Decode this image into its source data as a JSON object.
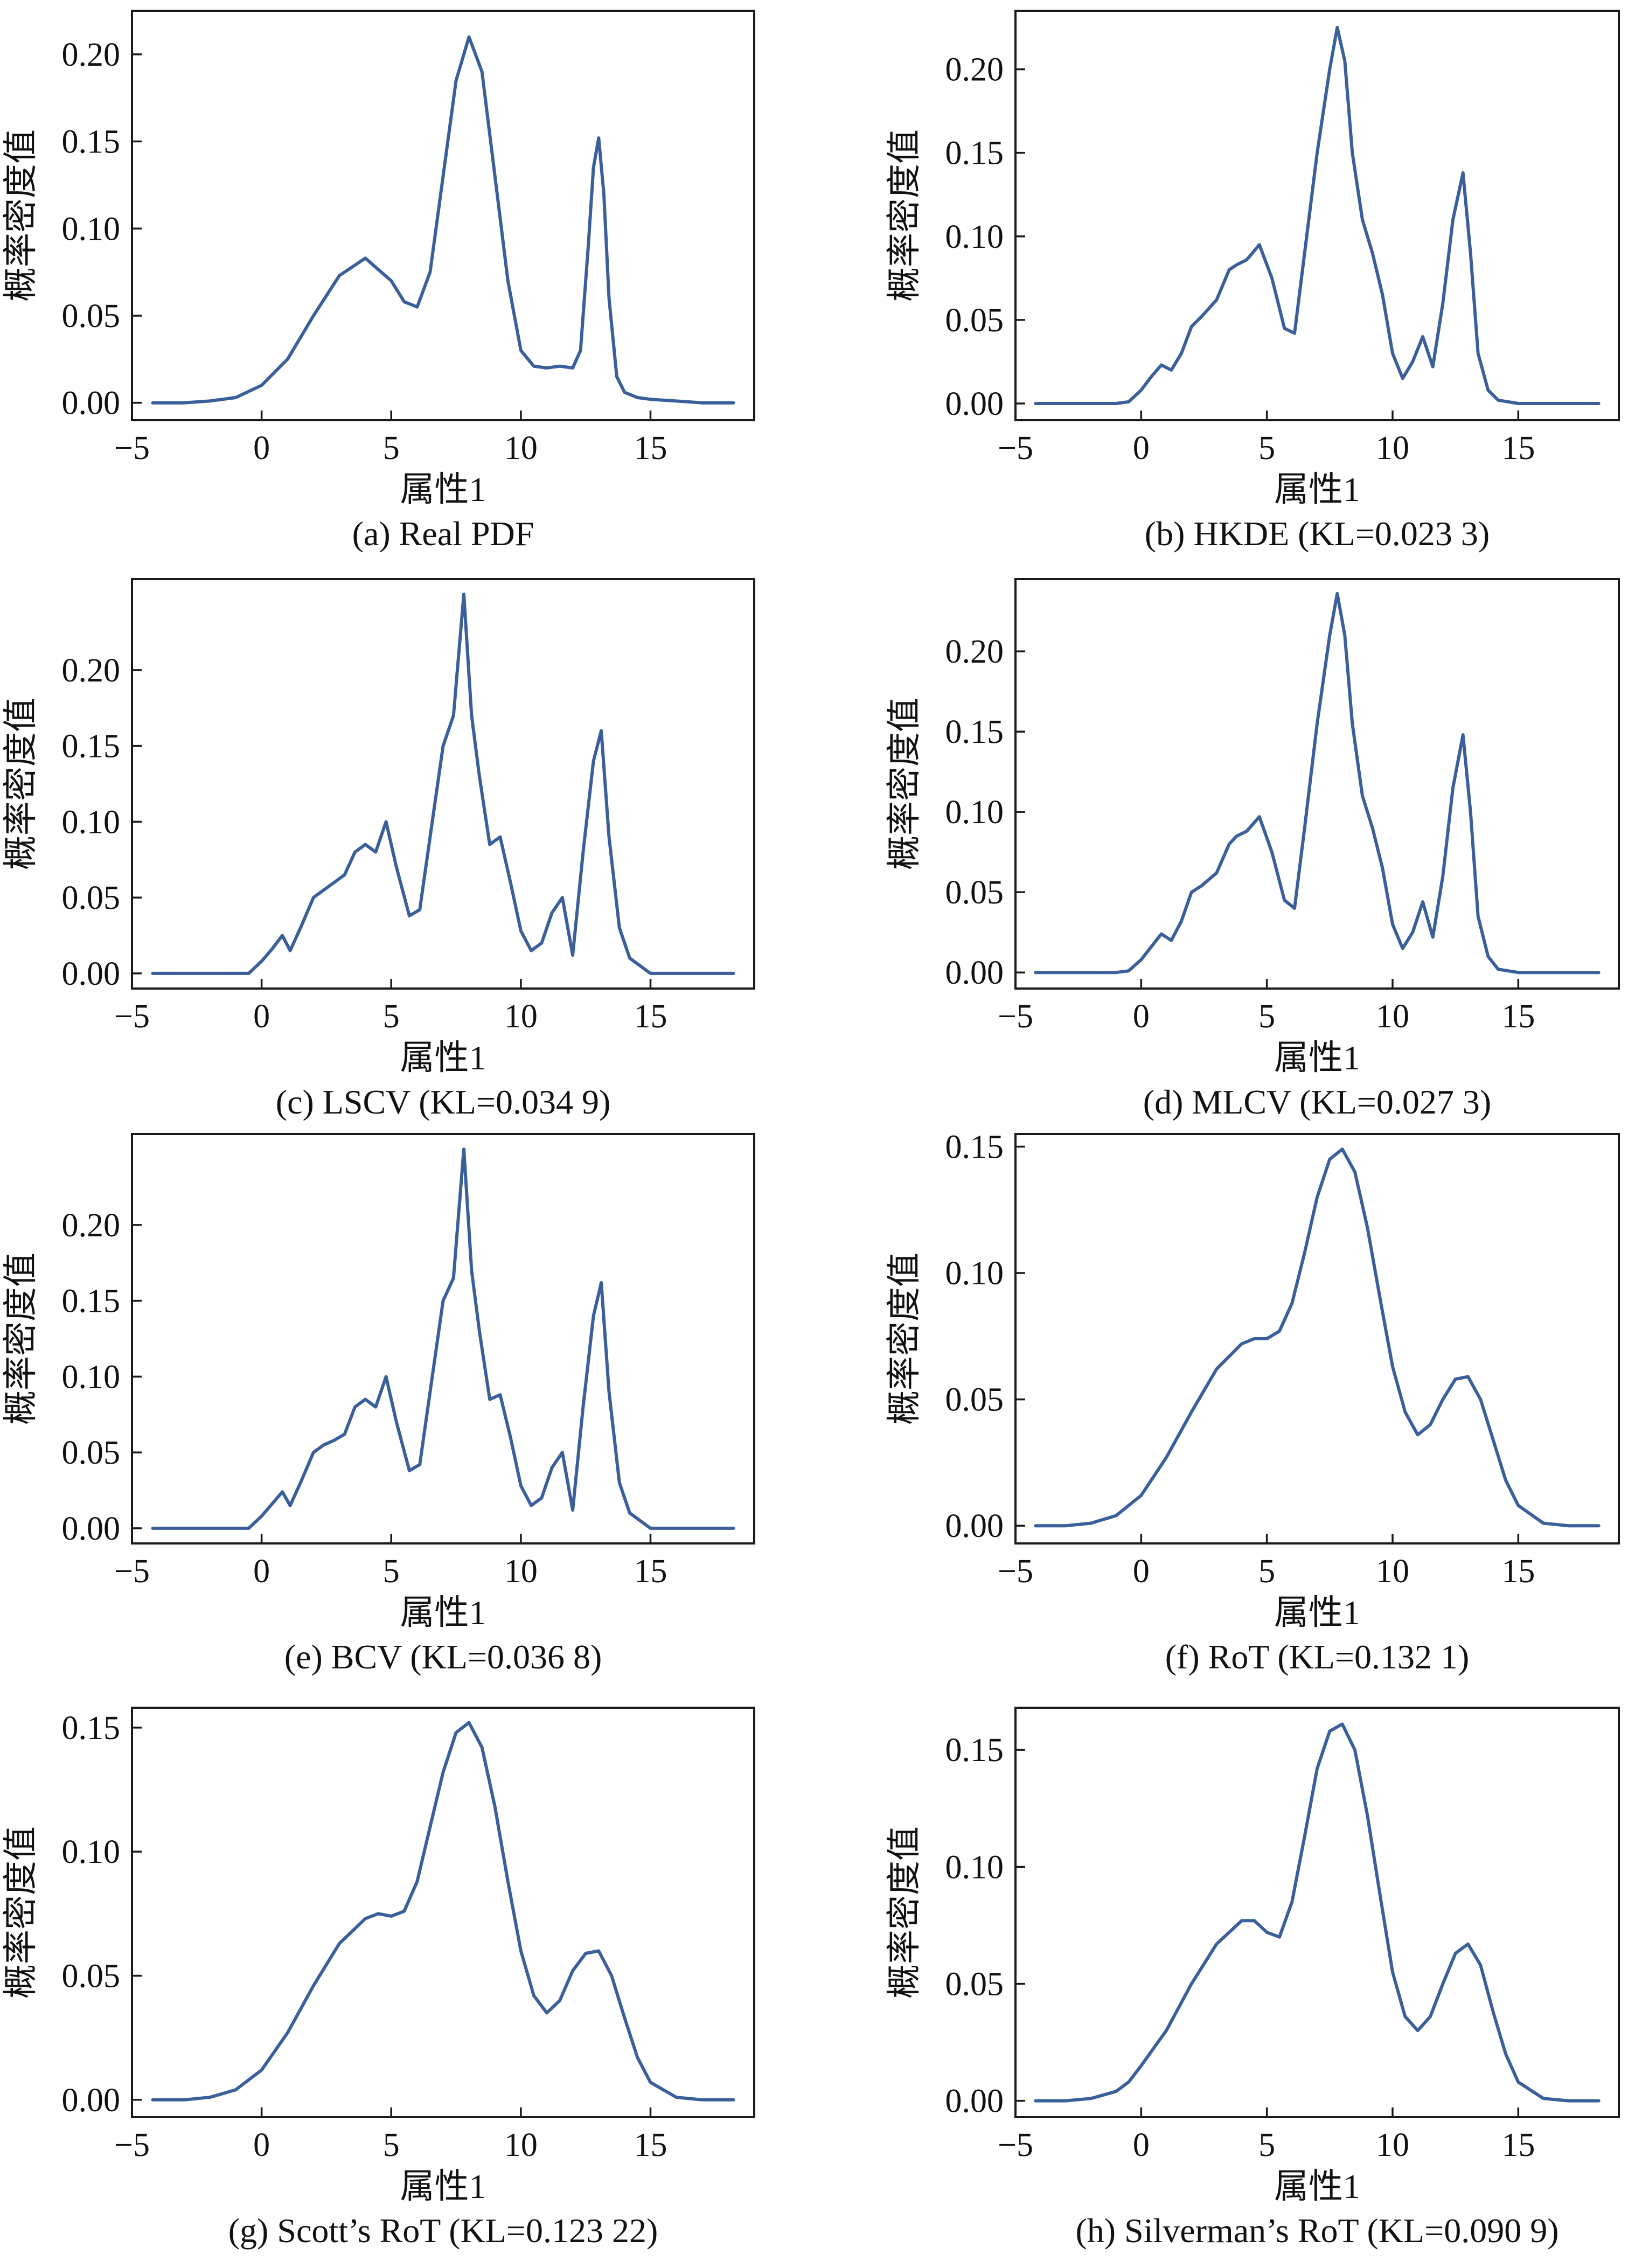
{
  "figure": {
    "curve_color": "#3a5f9b",
    "xlabel": "属性1",
    "ylabel": "概率密度值"
  },
  "chart_data": [
    {
      "type": "line",
      "caption": "(a) Real PDF",
      "xlabel": "属性1",
      "ylabel": "概率密度值",
      "xlim": [
        -5,
        19
      ],
      "ylim": [
        -0.01,
        0.225
      ],
      "xticks": [
        -5,
        0,
        5,
        10,
        15
      ],
      "xtick_labels": [
        "−5",
        "0",
        "5",
        "10",
        "15"
      ],
      "yticks": [
        0.0,
        0.05,
        0.1,
        0.15,
        0.2
      ],
      "ytick_labels": [
        "0.00",
        "0.05",
        "0.10",
        "0.15",
        "0.20"
      ],
      "series": [
        {
          "x": [
            -4.2,
            -3,
            -2,
            -1,
            0,
            1,
            2,
            3,
            4,
            5,
            5.5,
            6,
            6.5,
            7,
            7.5,
            8,
            8.5,
            9,
            9.5,
            10,
            10.5,
            11,
            11.5,
            12,
            12.3,
            12.6,
            12.8,
            13,
            13.2,
            13.4,
            13.7,
            14,
            14.5,
            15,
            16,
            17,
            18.2
          ],
          "y": [
            0.0,
            0.0,
            0.001,
            0.003,
            0.01,
            0.025,
            0.05,
            0.073,
            0.083,
            0.07,
            0.058,
            0.055,
            0.075,
            0.13,
            0.185,
            0.21,
            0.19,
            0.13,
            0.07,
            0.03,
            0.021,
            0.02,
            0.021,
            0.02,
            0.03,
            0.09,
            0.135,
            0.152,
            0.12,
            0.06,
            0.015,
            0.006,
            0.003,
            0.002,
            0.001,
            0.0,
            0.0
          ]
        }
      ]
    },
    {
      "type": "line",
      "caption": "(b) HKDE (KL=0.023 3)",
      "xlabel": "属性1",
      "ylabel": "概率密度值",
      "xlim": [
        -5,
        19
      ],
      "ylim": [
        -0.01,
        0.235
      ],
      "xticks": [
        -5,
        0,
        5,
        10,
        15
      ],
      "xtick_labels": [
        "−5",
        "0",
        "5",
        "10",
        "15"
      ],
      "yticks": [
        0.0,
        0.05,
        0.1,
        0.15,
        0.2
      ],
      "ytick_labels": [
        "0.00",
        "0.05",
        "0.10",
        "0.15",
        "0.20"
      ],
      "series": [
        {
          "x": [
            -4.2,
            -2,
            -1,
            -0.5,
            0,
            0.4,
            0.8,
            1.2,
            1.6,
            2,
            2.4,
            3,
            3.5,
            3.8,
            4.2,
            4.7,
            5.2,
            5.7,
            6.1,
            6.5,
            7,
            7.5,
            7.8,
            8.1,
            8.4,
            8.8,
            9.2,
            9.6,
            10,
            10.4,
            10.8,
            11.2,
            11.6,
            12,
            12.4,
            12.8,
            13.1,
            13.4,
            13.8,
            14.2,
            15,
            16,
            18.2
          ],
          "y": [
            0.0,
            0.0,
            0.0,
            0.001,
            0.008,
            0.016,
            0.023,
            0.02,
            0.03,
            0.046,
            0.052,
            0.062,
            0.08,
            0.083,
            0.086,
            0.095,
            0.075,
            0.045,
            0.042,
            0.09,
            0.15,
            0.2,
            0.225,
            0.205,
            0.15,
            0.11,
            0.09,
            0.065,
            0.03,
            0.015,
            0.025,
            0.04,
            0.022,
            0.06,
            0.11,
            0.138,
            0.09,
            0.03,
            0.008,
            0.002,
            0.0,
            0.0,
            0.0
          ]
        }
      ]
    },
    {
      "type": "line",
      "caption": "(c) LSCV (KL=0.034 9)",
      "xlabel": "属性1",
      "ylabel": "概率密度值",
      "xlim": [
        -5,
        19
      ],
      "ylim": [
        -0.01,
        0.26
      ],
      "xticks": [
        -5,
        0,
        5,
        10,
        15
      ],
      "xtick_labels": [
        "−5",
        "0",
        "5",
        "10",
        "15"
      ],
      "yticks": [
        0.0,
        0.05,
        0.1,
        0.15,
        0.2
      ],
      "ytick_labels": [
        "0.00",
        "0.05",
        "0.10",
        "0.15",
        "0.20"
      ],
      "series": [
        {
          "x": [
            -4.2,
            -2,
            -0.5,
            0,
            0.4,
            0.8,
            1.1,
            1.5,
            2,
            2.4,
            2.8,
            3.2,
            3.6,
            4,
            4.4,
            4.8,
            5.2,
            5.7,
            6.1,
            6.5,
            7,
            7.4,
            7.8,
            8.1,
            8.4,
            8.8,
            9.2,
            9.6,
            10,
            10.4,
            10.8,
            11.2,
            11.6,
            12,
            12.4,
            12.8,
            13.1,
            13.4,
            13.8,
            14.2,
            14.6,
            15,
            16,
            18.2
          ],
          "y": [
            0.0,
            0.0,
            0.0,
            0.008,
            0.016,
            0.025,
            0.015,
            0.03,
            0.05,
            0.055,
            0.06,
            0.065,
            0.08,
            0.085,
            0.08,
            0.1,
            0.07,
            0.038,
            0.042,
            0.09,
            0.15,
            0.17,
            0.25,
            0.17,
            0.13,
            0.085,
            0.09,
            0.06,
            0.028,
            0.015,
            0.02,
            0.04,
            0.05,
            0.012,
            0.08,
            0.14,
            0.16,
            0.09,
            0.03,
            0.01,
            0.005,
            0.0,
            0.0,
            0.0
          ]
        }
      ]
    },
    {
      "type": "line",
      "caption": "(d) MLCV (KL=0.027 3)",
      "xlabel": "属性1",
      "ylabel": "概率密度值",
      "xlim": [
        -5,
        19
      ],
      "ylim": [
        -0.01,
        0.245
      ],
      "xticks": [
        -5,
        0,
        5,
        10,
        15
      ],
      "xtick_labels": [
        "−5",
        "0",
        "5",
        "10",
        "15"
      ],
      "yticks": [
        0.0,
        0.05,
        0.1,
        0.15,
        0.2
      ],
      "ytick_labels": [
        "0.00",
        "0.05",
        "0.10",
        "0.15",
        "0.20"
      ],
      "series": [
        {
          "x": [
            -4.2,
            -2,
            -1,
            -0.5,
            0,
            0.4,
            0.8,
            1.2,
            1.6,
            2,
            2.4,
            3,
            3.5,
            3.8,
            4.2,
            4.7,
            5.2,
            5.7,
            6.1,
            6.5,
            7,
            7.5,
            7.8,
            8.1,
            8.4,
            8.8,
            9.2,
            9.6,
            10,
            10.4,
            10.8,
            11.2,
            11.6,
            12,
            12.4,
            12.8,
            13.1,
            13.4,
            13.8,
            14.2,
            15,
            16,
            18.2
          ],
          "y": [
            0.0,
            0.0,
            0.0,
            0.001,
            0.008,
            0.016,
            0.024,
            0.02,
            0.032,
            0.05,
            0.054,
            0.062,
            0.08,
            0.085,
            0.088,
            0.097,
            0.075,
            0.045,
            0.04,
            0.09,
            0.155,
            0.21,
            0.236,
            0.21,
            0.155,
            0.11,
            0.09,
            0.065,
            0.03,
            0.015,
            0.025,
            0.044,
            0.022,
            0.06,
            0.115,
            0.148,
            0.1,
            0.035,
            0.01,
            0.002,
            0.0,
            0.0,
            0.0
          ]
        }
      ]
    },
    {
      "type": "line",
      "caption": "(e) BCV (KL=0.036 8)",
      "xlabel": "属性1",
      "ylabel": "概率密度值",
      "xlim": [
        -5,
        19
      ],
      "ylim": [
        -0.01,
        0.26
      ],
      "xticks": [
        -5,
        0,
        5,
        10,
        15
      ],
      "xtick_labels": [
        "−5",
        "0",
        "5",
        "10",
        "15"
      ],
      "yticks": [
        0.0,
        0.05,
        0.1,
        0.15,
        0.2
      ],
      "ytick_labels": [
        "0.00",
        "0.05",
        "0.10",
        "0.15",
        "0.20"
      ],
      "series": [
        {
          "x": [
            -4.2,
            -2,
            -0.5,
            0,
            0.4,
            0.8,
            1.1,
            1.5,
            2,
            2.4,
            2.8,
            3.2,
            3.6,
            4,
            4.4,
            4.8,
            5.2,
            5.7,
            6.1,
            6.5,
            7,
            7.4,
            7.8,
            8.1,
            8.4,
            8.8,
            9.2,
            9.6,
            10,
            10.4,
            10.8,
            11.2,
            11.6,
            12,
            12.4,
            12.8,
            13.1,
            13.4,
            13.8,
            14.2,
            14.6,
            15,
            16,
            18.2
          ],
          "y": [
            0.0,
            0.0,
            0.0,
            0.008,
            0.016,
            0.024,
            0.015,
            0.03,
            0.05,
            0.055,
            0.058,
            0.062,
            0.08,
            0.085,
            0.08,
            0.1,
            0.07,
            0.038,
            0.042,
            0.09,
            0.15,
            0.165,
            0.25,
            0.17,
            0.13,
            0.085,
            0.088,
            0.06,
            0.028,
            0.015,
            0.02,
            0.04,
            0.05,
            0.012,
            0.08,
            0.14,
            0.162,
            0.09,
            0.03,
            0.01,
            0.005,
            0.0,
            0.0,
            0.0
          ]
        }
      ]
    },
    {
      "type": "line",
      "caption": "(f) RoT (KL=0.132 1)",
      "xlabel": "属性1",
      "ylabel": "概率密度值",
      "xlim": [
        -5,
        19
      ],
      "ylim": [
        -0.007,
        0.155
      ],
      "xticks": [
        -5,
        0,
        5,
        10,
        15
      ],
      "xtick_labels": [
        "−5",
        "0",
        "5",
        "10",
        "15"
      ],
      "yticks": [
        0.0,
        0.05,
        0.1,
        0.15
      ],
      "ytick_labels": [
        "0.00",
        "0.05",
        "0.10",
        "0.15"
      ],
      "series": [
        {
          "x": [
            -4.2,
            -3,
            -2,
            -1,
            0,
            1,
            2,
            3,
            4,
            4.5,
            5,
            5.5,
            6,
            6.5,
            7,
            7.5,
            8,
            8.5,
            9,
            9.5,
            10,
            10.5,
            11,
            11.5,
            12,
            12.5,
            13,
            13.5,
            14,
            14.5,
            15,
            16,
            17,
            18.2
          ],
          "y": [
            0.0,
            0.0,
            0.001,
            0.004,
            0.012,
            0.027,
            0.045,
            0.062,
            0.072,
            0.074,
            0.074,
            0.077,
            0.088,
            0.108,
            0.13,
            0.145,
            0.149,
            0.14,
            0.118,
            0.09,
            0.063,
            0.045,
            0.036,
            0.04,
            0.05,
            0.058,
            0.059,
            0.05,
            0.034,
            0.018,
            0.008,
            0.001,
            0.0,
            0.0
          ]
        }
      ]
    },
    {
      "type": "line",
      "caption": "(g) Scott’s RoT (KL=0.123 22)",
      "xlabel": "属性1",
      "ylabel": "概率密度值",
      "xlim": [
        -5,
        19
      ],
      "ylim": [
        -0.007,
        0.158
      ],
      "xticks": [
        -5,
        0,
        5,
        10,
        15
      ],
      "xtick_labels": [
        "−5",
        "0",
        "5",
        "10",
        "15"
      ],
      "yticks": [
        0.0,
        0.05,
        0.1,
        0.15
      ],
      "ytick_labels": [
        "0.00",
        "0.05",
        "0.10",
        "0.15"
      ],
      "series": [
        {
          "x": [
            -4.2,
            -3,
            -2,
            -1,
            0,
            1,
            2,
            3,
            4,
            4.5,
            5,
            5.5,
            6,
            6.5,
            7,
            7.5,
            8,
            8.5,
            9,
            9.5,
            10,
            10.5,
            11,
            11.5,
            12,
            12.5,
            13,
            13.5,
            14,
            14.5,
            15,
            16,
            17,
            18.2
          ],
          "y": [
            0.0,
            0.0,
            0.001,
            0.004,
            0.012,
            0.027,
            0.046,
            0.063,
            0.073,
            0.075,
            0.074,
            0.076,
            0.088,
            0.11,
            0.132,
            0.148,
            0.152,
            0.142,
            0.118,
            0.088,
            0.06,
            0.042,
            0.035,
            0.04,
            0.052,
            0.059,
            0.06,
            0.05,
            0.033,
            0.017,
            0.007,
            0.001,
            0.0,
            0.0
          ]
        }
      ]
    },
    {
      "type": "line",
      "caption": "(h) Silverman’s RoT (KL=0.090 9)",
      "xlabel": "属性1",
      "ylabel": "概率密度值",
      "xlim": [
        -5,
        19
      ],
      "ylim": [
        -0.007,
        0.168
      ],
      "xticks": [
        -5,
        0,
        5,
        10,
        15
      ],
      "xtick_labels": [
        "−5",
        "0",
        "5",
        "10",
        "15"
      ],
      "yticks": [
        0.0,
        0.05,
        0.1,
        0.15
      ],
      "ytick_labels": [
        "0.00",
        "0.05",
        "0.10",
        "0.15"
      ],
      "series": [
        {
          "x": [
            -4.2,
            -3,
            -2,
            -1,
            -0.5,
            0,
            1,
            2,
            3,
            4,
            4.5,
            5,
            5.5,
            6,
            6.5,
            7,
            7.5,
            8,
            8.5,
            9,
            9.5,
            10,
            10.5,
            11,
            11.5,
            12,
            12.5,
            13,
            13.5,
            14,
            14.5,
            15,
            16,
            17,
            18.2
          ],
          "y": [
            0.0,
            0.0,
            0.001,
            0.004,
            0.008,
            0.015,
            0.03,
            0.05,
            0.067,
            0.077,
            0.077,
            0.072,
            0.07,
            0.085,
            0.113,
            0.142,
            0.158,
            0.161,
            0.15,
            0.122,
            0.088,
            0.055,
            0.036,
            0.03,
            0.036,
            0.05,
            0.063,
            0.067,
            0.058,
            0.038,
            0.02,
            0.008,
            0.001,
            0.0,
            0.0
          ]
        }
      ]
    }
  ]
}
